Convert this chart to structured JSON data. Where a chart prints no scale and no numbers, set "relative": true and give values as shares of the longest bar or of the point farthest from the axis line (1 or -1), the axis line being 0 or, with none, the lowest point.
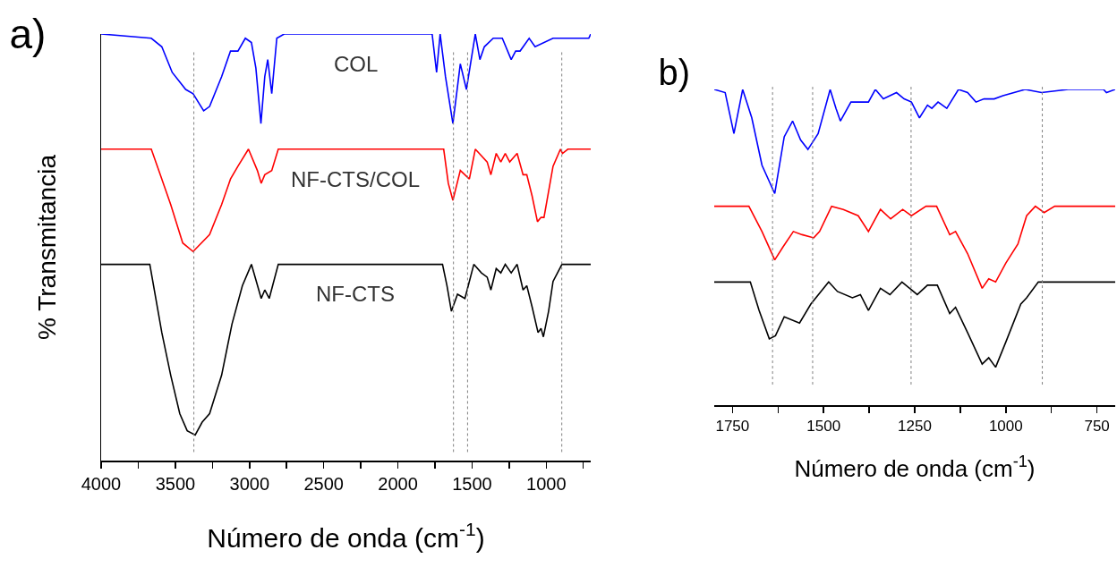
{
  "chart_data": [
    {
      "type": "line",
      "title": "a)",
      "xlabel": "Número de onda (cm$^{-1}$)",
      "ylabel": "% Transmitancia",
      "relative": true,
      "xlim": [
        4000,
        700
      ],
      "xticks": [
        4000,
        {
          "value": 3750,
          "label": null
        },
        3500,
        {
          "value": 3250,
          "label": null
        },
        3000,
        {
          "value": 2750,
          "label": null
        },
        2500,
        {
          "value": 2250,
          "label": null
        },
        2000,
        {
          "value": 1750,
          "label": null
        },
        1500,
        {
          "value": 1250,
          "label": null
        },
        1000,
        {
          "value": 750,
          "label": null
        }
      ],
      "tick_labels": "x",
      "grid": false,
      "legend": false,
      "ref_lines": [
        {
          "axis": "x",
          "value": 3375,
          "color": "#808080",
          "line_style": "dotted"
        },
        {
          "axis": "x",
          "value": 1625,
          "color": "#808080",
          "line_style": "dotted"
        },
        {
          "axis": "x",
          "value": 1530,
          "color": "#808080",
          "line_style": "dotted"
        },
        {
          "axis": "x",
          "value": 895,
          "color": "#808080",
          "line_style": "dotted"
        }
      ],
      "series": [
        {
          "name": "COL",
          "color": "#0000ff",
          "x": [
            4000,
            3662,
            3591,
            3521,
            3430,
            3380,
            3309,
            3269,
            3188,
            3128,
            3078,
            3028,
            2987,
            2957,
            2923,
            2897,
            2877,
            2850,
            2816,
            2766,
            2263,
            1769,
            1739,
            1715,
            1679,
            1629,
            1579,
            1538,
            1478,
            1447,
            1417,
            1357,
            1296,
            1236,
            1206,
            1176,
            1115,
            1075,
            954,
            894,
            713,
            700
          ],
          "values": [
            1.0,
            0.99,
            0.97,
            0.91,
            0.87,
            0.86,
            0.82,
            0.83,
            0.9,
            0.96,
            0.96,
            0.99,
            0.98,
            0.92,
            0.79,
            0.9,
            0.94,
            0.86,
            0.99,
            1.0,
            1.0,
            1.0,
            0.91,
            1.0,
            0.9,
            0.79,
            0.93,
            0.87,
            1.0,
            0.94,
            0.97,
            0.99,
            0.99,
            0.94,
            0.96,
            0.96,
            0.99,
            0.97,
            0.99,
            0.99,
            0.99,
            1.0
          ]
        },
        {
          "name": "NF-CTS/COL",
          "color": "#ff0000",
          "x": [
            4000,
            3662,
            3601,
            3531,
            3450,
            3380,
            3269,
            3188,
            3128,
            3078,
            3007,
            2947,
            2921,
            2897,
            2850,
            2806,
            2263,
            1691,
            1660,
            1629,
            1579,
            1518,
            1478,
            1398,
            1373,
            1337,
            1306,
            1276,
            1246,
            1196,
            1156,
            1131,
            1095,
            1059,
            1035,
            1015,
            954,
            904,
            890,
            854,
            700
          ],
          "values": [
            0.73,
            0.73,
            0.67,
            0.6,
            0.51,
            0.49,
            0.53,
            0.6,
            0.66,
            0.69,
            0.73,
            0.68,
            0.65,
            0.67,
            0.68,
            0.73,
            0.73,
            0.73,
            0.65,
            0.61,
            0.68,
            0.66,
            0.73,
            0.7,
            0.67,
            0.72,
            0.7,
            0.72,
            0.7,
            0.72,
            0.67,
            0.67,
            0.62,
            0.56,
            0.57,
            0.57,
            0.69,
            0.73,
            0.72,
            0.73,
            0.73
          ]
        },
        {
          "name": "NF-CTS",
          "color": "#000000",
          "x": [
            4000,
            3672,
            3591,
            3531,
            3470,
            3420,
            3366,
            3319,
            3269,
            3188,
            3118,
            3048,
            2987,
            2921,
            2897,
            2867,
            2806,
            2263,
            1699,
            1669,
            1639,
            1598,
            1548,
            1488,
            1437,
            1398,
            1373,
            1337,
            1306,
            1276,
            1236,
            1196,
            1156,
            1131,
            1095,
            1055,
            1035,
            1019,
            984,
            954,
            894,
            700
          ],
          "values": [
            0.46,
            0.46,
            0.3,
            0.2,
            0.11,
            0.07,
            0.06,
            0.09,
            0.11,
            0.2,
            0.32,
            0.41,
            0.46,
            0.38,
            0.4,
            0.38,
            0.46,
            0.46,
            0.46,
            0.41,
            0.35,
            0.39,
            0.38,
            0.46,
            0.44,
            0.43,
            0.4,
            0.45,
            0.44,
            0.46,
            0.44,
            0.46,
            0.4,
            0.41,
            0.36,
            0.3,
            0.31,
            0.29,
            0.35,
            0.42,
            0.46,
            0.46
          ]
        }
      ]
    },
    {
      "type": "line",
      "title": "b)",
      "xlabel": "Número de onda (cm$^{-1}$)",
      "relative": true,
      "xlim": [
        1800,
        700
      ],
      "xticks": [
        1750,
        {
          "value": 1625,
          "label": null
        },
        1500,
        {
          "value": 1375,
          "label": null
        },
        1250,
        {
          "value": 1125,
          "label": null
        },
        1000,
        {
          "value": 875,
          "label": null
        },
        750
      ],
      "tick_labels": "x",
      "grid": false,
      "legend": false,
      "ref_lines": [
        {
          "axis": "x",
          "value": 1640,
          "color": "#808080",
          "line_style": "dotted"
        },
        {
          "axis": "x",
          "value": 1530,
          "color": "#808080",
          "line_style": "dotted"
        },
        {
          "axis": "x",
          "value": 1260,
          "color": "#808080",
          "line_style": "dotted"
        },
        {
          "axis": "x",
          "value": 900,
          "color": "#808080",
          "line_style": "dotted"
        }
      ],
      "series": [
        {
          "color": "#0000ff",
          "x": [
            1800,
            1770,
            1746,
            1722,
            1697,
            1669,
            1634,
            1608,
            1585,
            1563,
            1543,
            1515,
            1482,
            1466,
            1454,
            1425,
            1401,
            1377,
            1358,
            1336,
            1300,
            1279,
            1259,
            1237,
            1215,
            1203,
            1186,
            1162,
            1130,
            1105,
            1082,
            1060,
            1032,
            1008,
            947,
            902,
            829,
            732,
            724,
            700
          ],
          "values": [
            1.0,
            0.99,
            0.86,
            1.0,
            0.91,
            0.76,
            0.67,
            0.85,
            0.9,
            0.84,
            0.81,
            0.86,
            1.0,
            0.94,
            0.9,
            0.96,
            0.96,
            0.96,
            1.0,
            0.97,
            0.99,
            0.97,
            0.96,
            0.91,
            0.95,
            0.94,
            0.96,
            0.94,
            1.0,
            0.99,
            0.96,
            0.97,
            0.97,
            0.98,
            1.0,
            0.99,
            1.0,
            1.0,
            0.99,
            1.0
          ]
        },
        {
          "color": "#ff0000",
          "x": [
            1800,
            1705,
            1669,
            1634,
            1612,
            1583,
            1559,
            1527,
            1511,
            1478,
            1446,
            1405,
            1377,
            1344,
            1316,
            1283,
            1259,
            1219,
            1190,
            1154,
            1138,
            1105,
            1065,
            1047,
            1028,
            1000,
            967,
            943,
            919,
            895,
            866,
            700
          ],
          "values": [
            0.63,
            0.63,
            0.55,
            0.46,
            0.5,
            0.55,
            0.54,
            0.53,
            0.55,
            0.63,
            0.62,
            0.6,
            0.55,
            0.62,
            0.59,
            0.62,
            0.6,
            0.63,
            0.63,
            0.54,
            0.55,
            0.48,
            0.37,
            0.4,
            0.39,
            0.45,
            0.51,
            0.6,
            0.63,
            0.61,
            0.63,
            0.63
          ]
        },
        {
          "color": "#000000",
          "x": [
            1800,
            1701,
            1677,
            1649,
            1632,
            1608,
            1566,
            1535,
            1486,
            1462,
            1421,
            1399,
            1377,
            1344,
            1318,
            1285,
            1243,
            1215,
            1188,
            1154,
            1138,
            1105,
            1065,
            1047,
            1028,
            1000,
            959,
            943,
            911,
            700
          ],
          "values": [
            0.39,
            0.39,
            0.3,
            0.21,
            0.22,
            0.28,
            0.26,
            0.32,
            0.39,
            0.36,
            0.34,
            0.35,
            0.3,
            0.37,
            0.35,
            0.39,
            0.35,
            0.38,
            0.38,
            0.29,
            0.31,
            0.23,
            0.13,
            0.15,
            0.12,
            0.2,
            0.32,
            0.34,
            0.39,
            0.39
          ]
        }
      ]
    }
  ]
}
